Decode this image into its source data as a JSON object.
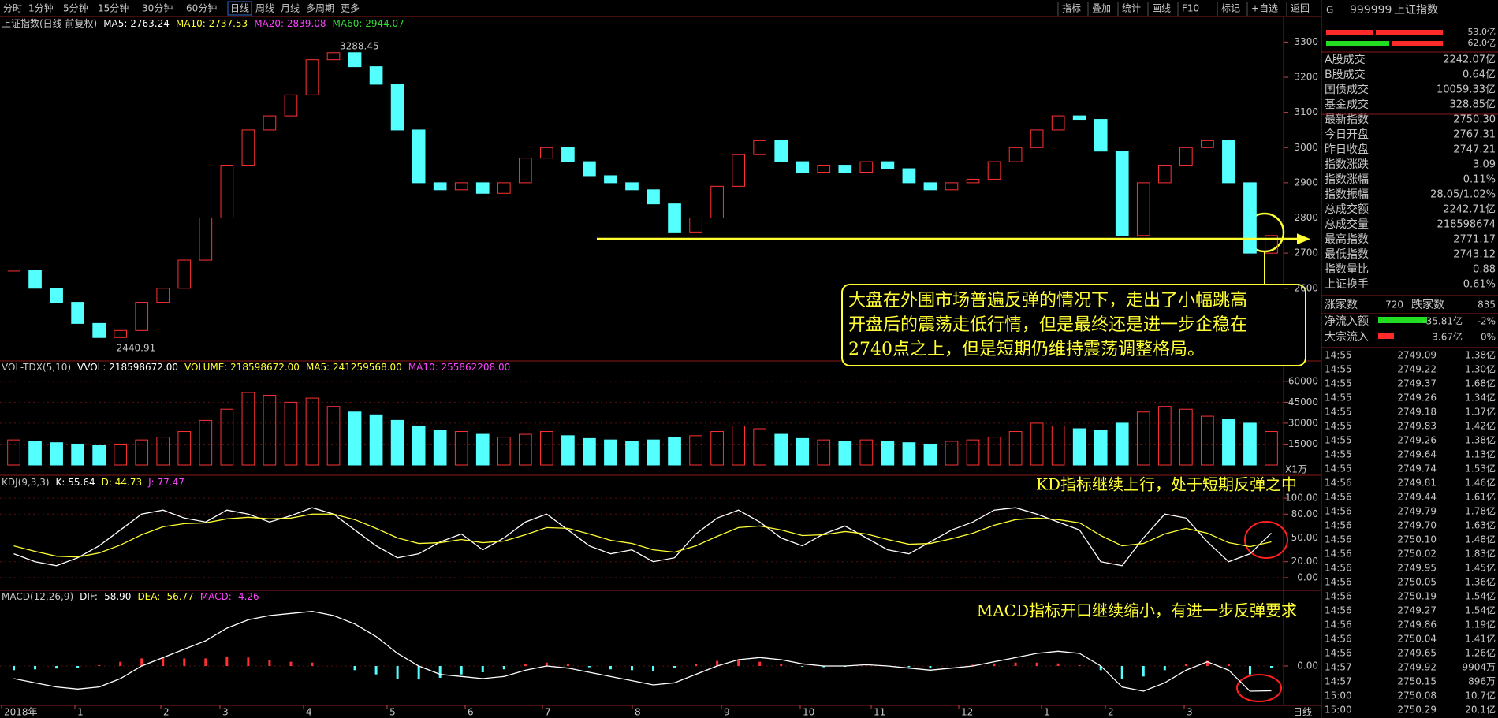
{
  "toolbar": {
    "periods": [
      "分时",
      "1分钟",
      "5分钟",
      "15分钟",
      "30分钟",
      "60分钟",
      "日线",
      "周线",
      "月线",
      "多周期",
      "更多"
    ],
    "tools": [
      "指标",
      "叠加",
      "统计",
      "画线",
      "F10",
      "标记",
      "+自选",
      "返回"
    ]
  },
  "price": {
    "title": "上证指数(日线 前复权)",
    "ma_labels": [
      "MA5: 2763.24",
      "MA10: 2737.53",
      "MA20: 2839.08",
      "MA60: 2944.07"
    ],
    "closes": [
      2650,
      2600,
      2560,
      2500,
      2460,
      2480,
      2560,
      2600,
      2680,
      2800,
      2950,
      3050,
      3090,
      3150,
      3250,
      3270,
      3230,
      3180,
      3050,
      2900,
      2880,
      2900,
      2870,
      2900,
      2970,
      3000,
      2960,
      2920,
      2900,
      2880,
      2840,
      2760,
      2800,
      2890,
      2980,
      3020,
      2960,
      2930,
      2950,
      2930,
      2960,
      2940,
      2900,
      2880,
      2900,
      2910,
      2960,
      3000,
      3050,
      3090,
      3080,
      2990,
      2750,
      2900,
      2950,
      3000,
      3020,
      2900,
      2700,
      2750
    ],
    "ylim": [
      2400,
      3330
    ],
    "yticks": [
      2600,
      2700,
      2800,
      2900,
      3000,
      3100,
      3200,
      3300
    ],
    "high_label": 3288.45,
    "low_label": 2440.91,
    "support_level": 2740
  },
  "volume": {
    "header": [
      "VOL-TDX(5,10)",
      "VVOL: 218598672.00",
      "VOLUME: 218598672.00",
      "MA5: 241259568.00",
      "MA10: 255862208.00"
    ],
    "values": [
      18000,
      17000,
      16000,
      15000,
      14000,
      15000,
      18000,
      20000,
      24000,
      32000,
      40000,
      52000,
      50000,
      45000,
      48000,
      42000,
      38000,
      36000,
      32000,
      28000,
      25000,
      24000,
      22000,
      20000,
      22000,
      24000,
      21000,
      19000,
      18000,
      17000,
      18000,
      20000,
      21000,
      24000,
      28000,
      26000,
      22000,
      19000,
      18000,
      17000,
      18000,
      17000,
      16000,
      15000,
      17000,
      18000,
      20000,
      24000,
      30000,
      28000,
      26000,
      25000,
      30000,
      38000,
      42000,
      40000,
      35000,
      33000,
      30000,
      24000
    ],
    "ylim": [
      0,
      65000
    ],
    "yticks": [
      15000,
      30000,
      45000,
      60000
    ],
    "unit": "X1万"
  },
  "kdj": {
    "header": [
      "KDJ(9,3,3)",
      "K: 55.64",
      "D: 44.73",
      "J: 77.47"
    ],
    "k": [
      30,
      20,
      15,
      25,
      40,
      60,
      80,
      85,
      75,
      70,
      85,
      80,
      70,
      78,
      88,
      80,
      60,
      40,
      25,
      30,
      45,
      55,
      35,
      50,
      70,
      80,
      60,
      40,
      30,
      35,
      20,
      25,
      55,
      75,
      85,
      70,
      50,
      40,
      55,
      65,
      50,
      35,
      30,
      45,
      60,
      70,
      85,
      88,
      80,
      70,
      60,
      20,
      15,
      50,
      80,
      75,
      45,
      20,
      30,
      56
    ],
    "d": [
      40,
      33,
      27,
      26,
      31,
      41,
      54,
      64,
      68,
      69,
      74,
      76,
      74,
      75,
      80,
      80,
      73,
      62,
      50,
      43,
      44,
      48,
      44,
      46,
      54,
      63,
      62,
      55,
      47,
      43,
      35,
      32,
      40,
      52,
      63,
      65,
      60,
      53,
      54,
      58,
      55,
      48,
      42,
      43,
      49,
      56,
      66,
      73,
      75,
      73,
      69,
      53,
      40,
      43,
      55,
      62,
      56,
      44,
      39,
      45
    ],
    "ylim": [
      -12,
      112
    ],
    "yticks": [
      {
        "value": 0,
        "label": "0.00"
      },
      {
        "value": 20,
        "label": "20.00"
      },
      {
        "value": 50,
        "label": "50.00"
      },
      {
        "value": 80,
        "label": "80.00"
      },
      {
        "value": 100,
        "label": "100.00"
      }
    ]
  },
  "macd": {
    "header": [
      "MACD(12,26,9)",
      "DIF: -58.90",
      "DEA: -56.77",
      "MACD: -4.26"
    ],
    "dif": [
      -30,
      -40,
      -50,
      -55,
      -50,
      -30,
      0,
      20,
      40,
      60,
      90,
      110,
      120,
      125,
      130,
      120,
      100,
      70,
      30,
      0,
      -20,
      -25,
      -30,
      -25,
      -10,
      0,
      -5,
      -15,
      -25,
      -35,
      -45,
      -40,
      -20,
      0,
      15,
      20,
      15,
      5,
      0,
      0,
      3,
      0,
      -5,
      -10,
      -5,
      0,
      10,
      20,
      30,
      35,
      30,
      0,
      -50,
      -60,
      -40,
      -10,
      10,
      -10,
      -60,
      -59
    ],
    "hist": [
      -10,
      -8,
      -6,
      -5,
      2,
      10,
      18,
      20,
      18,
      18,
      22,
      20,
      15,
      10,
      8,
      0,
      -10,
      -20,
      -30,
      -32,
      -28,
      -20,
      -15,
      -8,
      5,
      8,
      4,
      -3,
      -8,
      -10,
      -12,
      -5,
      5,
      12,
      14,
      10,
      4,
      -2,
      -3,
      -2,
      1,
      -1,
      -3,
      -4,
      0,
      3,
      6,
      8,
      8,
      6,
      2,
      -10,
      -30,
      -25,
      -10,
      5,
      12,
      5,
      -20,
      -4
    ],
    "ylim": [
      -90,
      150
    ],
    "yticks": [
      {
        "value": 0,
        "label": "0.00"
      }
    ]
  },
  "x_labels": [
    "2018年",
    "1",
    "2",
    "3",
    "4",
    "5",
    "6",
    "7",
    "8",
    "9",
    "10",
    "11",
    "12",
    "1",
    "2",
    "3"
  ],
  "annotations": {
    "main": [
      "大盘在外围市场普遍反弹的情况下，走出了小幅跳高",
      "开盘后的震荡走低行情，但是最终还是进一步企稳在",
      "2740点之上，但是短期仍维持震荡调整格局。"
    ],
    "kdj": "KD指标继续上行，处于短期反弹之中",
    "macd": "MACD指标开口继续缩小，有进一步反弹要求"
  },
  "quote": {
    "code": "G",
    "symbol": "999999",
    "name": "上证指数",
    "bars": [
      "53.0亿",
      "62.0亿"
    ],
    "rows": [
      [
        "A股成交",
        "2242.07亿"
      ],
      [
        "B股成交",
        "0.64亿"
      ],
      [
        "国债成交",
        "10059.33亿"
      ],
      [
        "基金成交",
        "328.85亿"
      ],
      [
        "最新指数",
        "2750.30"
      ],
      [
        "今日开盘",
        "2767.31"
      ],
      [
        "昨日收盘",
        "2747.21"
      ],
      [
        "指数涨跌",
        "3.09"
      ],
      [
        "指数涨幅",
        "0.11%"
      ],
      [
        "指数振幅",
        "28.05/1.02%"
      ],
      [
        "总成交额",
        "2242.71亿"
      ],
      [
        "总成交量",
        "218598674"
      ],
      [
        "最高指数",
        "2771.17"
      ],
      [
        "最低指数",
        "2743.12"
      ],
      [
        "指数量比",
        "0.88"
      ],
      [
        "上证换手",
        "0.61%"
      ]
    ],
    "breadth": [
      "涨家数",
      "720",
      "跌家数",
      "835"
    ],
    "flows": [
      [
        "净流入额",
        "-35.81亿",
        "-2%"
      ],
      [
        "大宗流入",
        "3.67亿",
        "0%"
      ]
    ]
  },
  "ticks": [
    [
      "14:55",
      "2749.09",
      "1.38亿"
    ],
    [
      "14:55",
      "2749.22",
      "1.30亿"
    ],
    [
      "14:55",
      "2749.37",
      "1.68亿"
    ],
    [
      "14:55",
      "2749.26",
      "1.34亿"
    ],
    [
      "14:55",
      "2749.18",
      "1.37亿"
    ],
    [
      "14:55",
      "2749.83",
      "1.42亿"
    ],
    [
      "14:55",
      "2749.26",
      "1.38亿"
    ],
    [
      "14:55",
      "2749.64",
      "1.13亿"
    ],
    [
      "14:55",
      "2749.74",
      "1.53亿"
    ],
    [
      "14:56",
      "2749.81",
      "1.46亿"
    ],
    [
      "14:56",
      "2749.44",
      "1.61亿"
    ],
    [
      "14:56",
      "2749.79",
      "1.78亿"
    ],
    [
      "14:56",
      "2749.70",
      "1.63亿"
    ],
    [
      "14:56",
      "2750.10",
      "1.48亿"
    ],
    [
      "14:56",
      "2750.02",
      "1.83亿"
    ],
    [
      "14:56",
      "2749.95",
      "1.45亿"
    ],
    [
      "14:56",
      "2750.05",
      "1.36亿"
    ],
    [
      "14:56",
      "2750.19",
      "1.54亿"
    ],
    [
      "14:56",
      "2749.27",
      "1.54亿"
    ],
    [
      "14:56",
      "2749.86",
      "1.19亿"
    ],
    [
      "14:56",
      "2750.04",
      "1.41亿"
    ],
    [
      "14:56",
      "2749.65",
      "1.26亿"
    ],
    [
      "14:57",
      "2749.92",
      "9904万"
    ],
    [
      "14:57",
      "2750.15",
      "896万"
    ],
    [
      "15:00",
      "2750.08",
      "10.7亿"
    ],
    [
      "15:00",
      "2750.29",
      "20.1亿"
    ]
  ]
}
